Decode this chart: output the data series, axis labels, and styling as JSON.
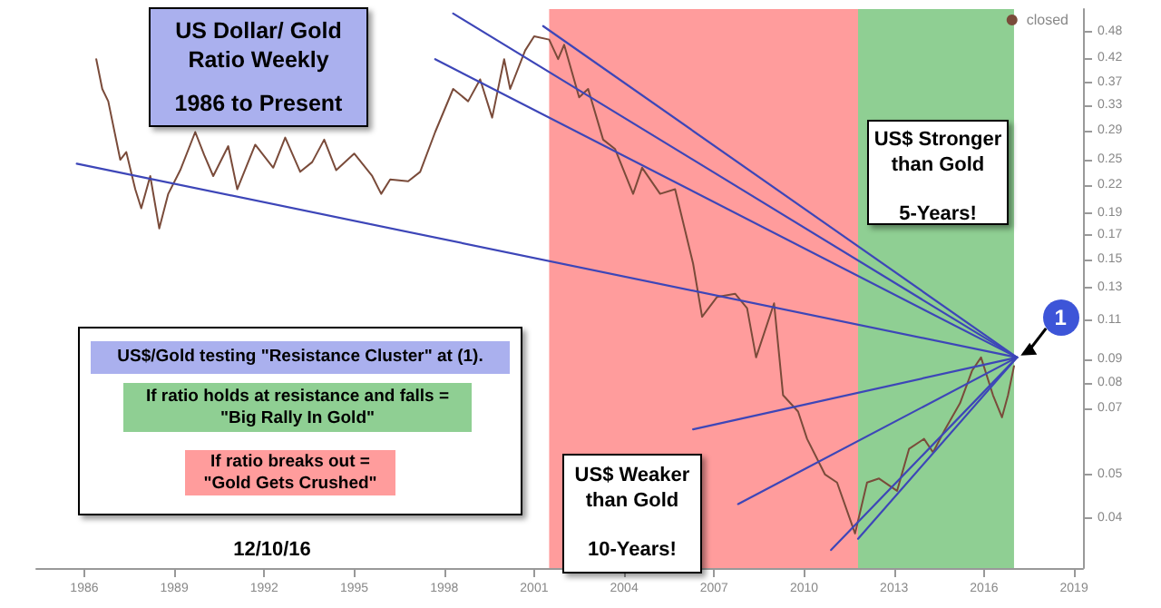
{
  "chart_data": {
    "type": "line",
    "title": "US Dollar/ Gold Ratio Weekly",
    "subtitle": "1986 to Present",
    "log": "y",
    "legend": "top right",
    "xlim": [
      1984.4,
      2019.3
    ],
    "xticks": [
      1986,
      1989,
      1992,
      1995,
      1998,
      2001,
      2004,
      2007,
      2010,
      2013,
      2016,
      2019
    ],
    "ylim": [
      0.031,
      0.54
    ],
    "yticks": [
      0.04,
      0.05,
      0.07,
      0.08,
      0.09,
      0.11,
      0.13,
      0.15,
      0.17,
      0.19,
      0.22,
      0.25,
      0.29,
      0.33,
      0.37,
      0.42,
      0.48
    ],
    "series": [
      {
        "name": "closed",
        "color": "#7a4b3a",
        "x": [
          1986.4,
          1986.6,
          1986.8,
          1987.2,
          1987.4,
          1987.7,
          1987.9,
          1988.2,
          1988.5,
          1988.8,
          1989.2,
          1989.7,
          1990.0,
          1990.3,
          1990.8,
          1991.1,
          1991.7,
          1992.3,
          1992.7,
          1993.2,
          1993.6,
          1994.0,
          1994.4,
          1995.0,
          1995.6,
          1995.9,
          1996.2,
          1996.8,
          1997.2,
          1997.7,
          1998.3,
          1998.8,
          1999.2,
          1999.6,
          2000.0,
          2000.2,
          2000.7,
          2001.0,
          2001.5,
          2001.8,
          2002.0,
          2002.5,
          2002.8,
          2003.3,
          2003.7,
          2004.3,
          2004.6,
          2005.2,
          2005.7,
          2006.3,
          2006.6,
          2007.1,
          2007.7,
          2008.1,
          2008.4,
          2009.0,
          2009.3,
          2009.8,
          2010.1,
          2010.7,
          2011.1,
          2011.7,
          2012.1,
          2012.5,
          2013.1,
          2013.5,
          2014.0,
          2014.3,
          2014.7,
          2015.2,
          2015.6,
          2015.9,
          2016.3,
          2016.6,
          2016.8,
          2017.0
        ],
        "values": [
          0.418,
          0.359,
          0.337,
          0.25,
          0.26,
          0.215,
          0.195,
          0.23,
          0.176,
          0.21,
          0.237,
          0.288,
          0.256,
          0.23,
          0.268,
          0.215,
          0.27,
          0.24,
          0.28,
          0.235,
          0.247,
          0.277,
          0.237,
          0.258,
          0.23,
          0.21,
          0.226,
          0.224,
          0.235,
          0.288,
          0.359,
          0.337,
          0.377,
          0.31,
          0.418,
          0.359,
          0.437,
          0.47,
          0.462,
          0.418,
          0.45,
          0.344,
          0.359,
          0.277,
          0.264,
          0.21,
          0.24,
          0.21,
          0.215,
          0.147,
          0.112,
          0.124,
          0.126,
          0.117,
          0.091,
          0.12,
          0.075,
          0.069,
          0.06,
          0.05,
          0.048,
          0.037,
          0.048,
          0.049,
          0.046,
          0.057,
          0.06,
          0.056,
          0.063,
          0.072,
          0.085,
          0.091,
          0.075,
          0.067,
          0.075,
          0.087
        ]
      },
      {
        "color": "#3d46b8",
        "x": [
          1985.75,
          2017.1
        ],
        "values": [
          0.245,
          0.091
        ]
      },
      {
        "color": "#3d46b8",
        "x": [
          1997.7,
          2017.1
        ],
        "values": [
          0.418,
          0.091
        ]
      },
      {
        "color": "#3d46b8",
        "x": [
          1998.3,
          2017.1
        ],
        "values": [
          0.528,
          0.091
        ]
      },
      {
        "color": "#3d46b8",
        "x": [
          2001.3,
          2017.1
        ],
        "values": [
          0.495,
          0.091
        ]
      },
      {
        "color": "#3d46b8",
        "x": [
          2006.3,
          2017.1
        ],
        "values": [
          0.063,
          0.091
        ]
      },
      {
        "color": "#3d46b8",
        "x": [
          2007.8,
          2017.1
        ],
        "values": [
          0.043,
          0.091
        ]
      },
      {
        "color": "#3d46b8",
        "x": [
          2010.9,
          2017.1
        ],
        "values": [
          0.034,
          0.091
        ]
      },
      {
        "color": "#3d46b8",
        "x": [
          2011.8,
          2017.1
        ],
        "values": [
          0.036,
          0.091
        ]
      }
    ],
    "bands": [
      {
        "axis": "x",
        "from": 2001.5,
        "to": 2011.8,
        "color": "#ff9c9c"
      },
      {
        "axis": "x",
        "from": 2011.8,
        "to": 2017.0,
        "color": "#8fcf93"
      }
    ],
    "annotations": [
      "US$/Gold testing \"Resistance Cluster\" at (1).",
      "If ratio holds at resistance and falls =\n\"Big Rally In Gold\"",
      "If ratio breaks out =\n\"Gold Gets Crushed\"",
      "US$ Weaker than Gold\n\n10-Years!",
      "US$ Stronger than Gold\n\n5-Years!",
      {
        "text": "1",
        "x": 2017.1,
        "y": 0.091
      },
      "12/10/16"
    ]
  }
}
